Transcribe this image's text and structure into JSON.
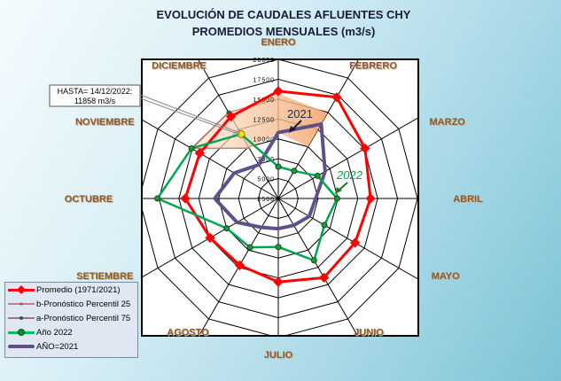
{
  "chart_data": {
    "type": "radar",
    "title": "EVOLUCIÓN DE CAUDALES AFLUENTES CHY",
    "subtitle": "PROMEDIOS MENSUALES (m3/s)",
    "categories": [
      "ENERO",
      "FEBRERO",
      "MARZO",
      "ABRIL",
      "MAYO",
      "JUNIO",
      "JULIO",
      "AGOSTO",
      "SETIEMBRE",
      "OCTUBRE",
      "NOVIEMBRE",
      "DICIEMBRE"
    ],
    "radial_axis": {
      "min": 2500,
      "max": 20000,
      "ticks": [
        "2500",
        "5000",
        "7500",
        "10000",
        "12500",
        "15000",
        "17500",
        "20000"
      ]
    },
    "grid": true,
    "legend_position": "bottom-left",
    "series": [
      {
        "name": "Promedio (1971/2021)",
        "color": "#ff0000",
        "values": [
          16000,
          17200,
          15100,
          14100,
          13650,
          14000,
          13000,
          12200,
          12400,
          14200,
          13900,
          14400
        ]
      },
      {
        "name": "b-Pronóstico  Percentil 25",
        "color": "#c08080",
        "values": [
          null,
          null,
          null,
          null,
          null,
          null,
          null,
          null,
          null,
          null,
          15100,
          9800
        ]
      },
      {
        "name": "a-Pronóstico  Percentil 75",
        "color": "#1f5f4f",
        "values": [
          null,
          null,
          null,
          null,
          null,
          null,
          null,
          null,
          null,
          null,
          15100,
          15000
        ]
      },
      {
        "name": "Año 2022",
        "color": "#00a650",
        "values": [
          6500,
          6500,
          8200,
          9900,
          9200,
          11500,
          8600,
          9600,
          10000,
          17700,
          15100,
          11858
        ]
      },
      {
        "name": "AÑO=2021",
        "color": "#60508a",
        "values": [
          10800,
          13300,
          9300,
          7200,
          7000,
          6400,
          6300,
          6700,
          8500,
          10500,
          8900,
          7400
        ]
      }
    ],
    "forecast_band": {
      "color": "#f4a46a",
      "p25": {
        "DICIEMBRE": 9800,
        "ENERO": 10800,
        "FEBRERO": 10000
      },
      "p75": {
        "DICIEMBRE": 15000,
        "ENERO": 15700,
        "FEBRERO": 14900
      }
    },
    "annotations": {
      "hasta": {
        "line1": "HASTA= 14/12/2022;",
        "line2": "11858 m3/s"
      },
      "label_2021": "2021",
      "label_2022": "2022"
    }
  }
}
